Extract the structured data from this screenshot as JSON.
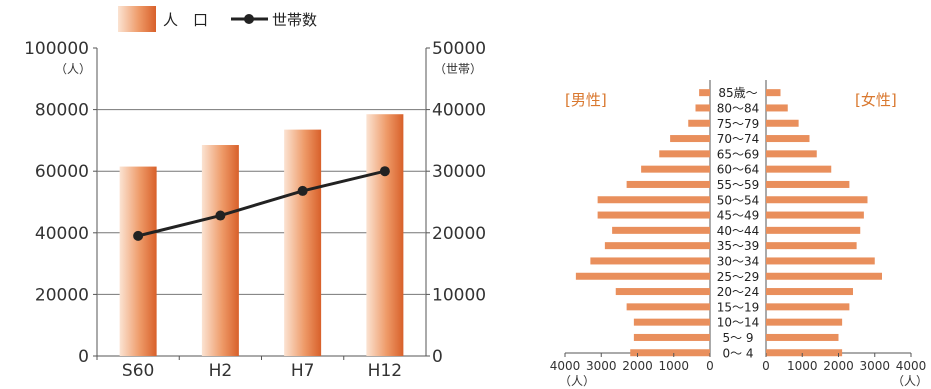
{
  "chart_data": [
    {
      "type": "bar+line",
      "legend": {
        "bar_label": "人　口",
        "line_label": "世帯数",
        "placement": "top"
      },
      "categories": [
        "S60",
        "H2",
        "H7",
        "H12"
      ],
      "left_axis": {
        "unit": "（人）",
        "ylim": [
          0,
          100000
        ],
        "ticks": [
          "0",
          "20000",
          "40000",
          "60000",
          "80000",
          "100000"
        ]
      },
      "right_axis": {
        "unit": "（世帯）",
        "ylim": [
          0,
          50000
        ],
        "ticks": [
          "0",
          "10000",
          "20000",
          "30000",
          "40000",
          "50000"
        ]
      },
      "series": [
        {
          "name": "人　口",
          "kind": "bar",
          "axis": "left",
          "values": [
            61500,
            68500,
            73500,
            78500
          ]
        },
        {
          "name": "世帯数",
          "kind": "line",
          "axis": "right",
          "values": [
            19500,
            22800,
            26800,
            30000
          ]
        }
      ],
      "colors": {
        "bar_dark": "#d8602a",
        "bar_light": "#fbe3d2",
        "line": "#222222",
        "grid": "#666666"
      }
    },
    {
      "type": "bar",
      "subtype": "population-pyramid",
      "left_label": "[男性]",
      "right_label": "[女性]",
      "categories": [
        "0～ 4",
        "5～ 9",
        "10～14",
        "15～19",
        "20～24",
        "25～29",
        "30～34",
        "35～39",
        "40～44",
        "45～49",
        "50～54",
        "55～59",
        "60～64",
        "65～69",
        "70～74",
        "75～79",
        "80～84",
        "85歳～"
      ],
      "series": [
        {
          "name": "[男性]",
          "values": [
            2200,
            2100,
            2100,
            2300,
            2600,
            3700,
            3300,
            2900,
            2700,
            3100,
            3100,
            2300,
            1900,
            1400,
            1100,
            600,
            400,
            300
          ]
        },
        {
          "name": "[女性]",
          "values": [
            2100,
            2000,
            2100,
            2300,
            2400,
            3200,
            3000,
            2500,
            2600,
            2700,
            2800,
            2300,
            1800,
            1400,
            1200,
            900,
            600,
            400
          ]
        }
      ],
      "xlim": [
        0,
        4000
      ],
      "x_ticks": [
        "4000",
        "3000",
        "2000",
        "1000",
        "0",
        "0",
        "1000",
        "2000",
        "3000",
        "4000"
      ],
      "x_unit": "（人）",
      "colors": {
        "bar": "#e98f5c",
        "label": "#d9782f"
      }
    }
  ]
}
